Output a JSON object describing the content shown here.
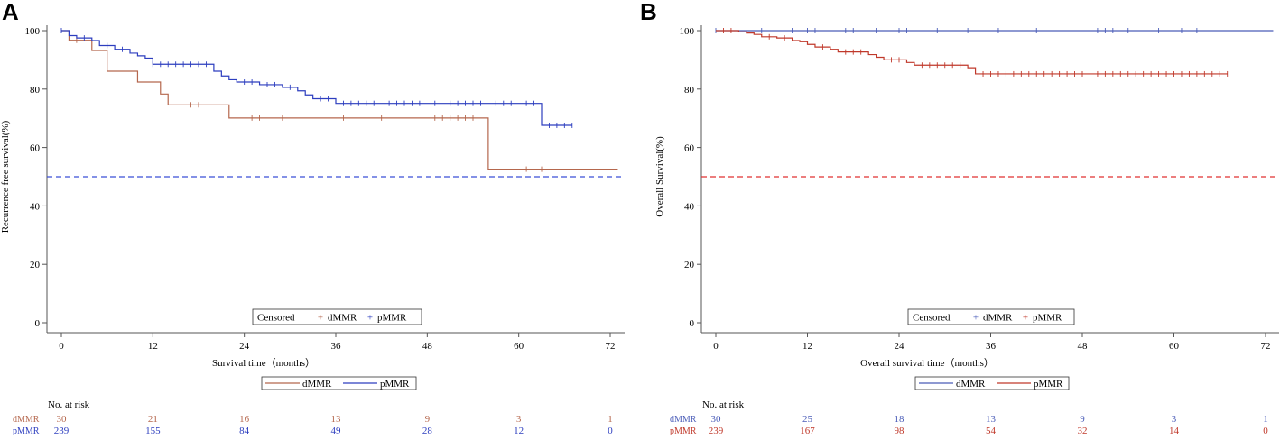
{
  "colors": {
    "dmmr": "#B5674D",
    "pmmr": "#2D3EBF",
    "panelB_dmmr": "#4A5CB8",
    "panelB_pmmr": "#C0392B",
    "ref_a": "#3B4FD8",
    "ref_b": "#E03030",
    "axis": "#555555"
  },
  "chart_data": [
    {
      "panel": "A",
      "type": "line",
      "step": true,
      "xlabel": "Survival time（months）",
      "ylabel": "Recurrence free survival(%)",
      "xlim": [
        -3,
        73
      ],
      "ylim": [
        -2,
        102
      ],
      "xticks": [
        "0",
        "12",
        "24",
        "36",
        "48",
        "60",
        "72"
      ],
      "yticks": [
        "0",
        "20",
        "40",
        "60",
        "80",
        "100"
      ],
      "reference_line": 50,
      "censor_legend": {
        "title": "Censored",
        "items": [
          "dMMR",
          "pMMR"
        ]
      },
      "line_legend": [
        "dMMR",
        "pMMR"
      ],
      "series": [
        {
          "name": "dMMR",
          "steps": [
            [
              0,
              100
            ],
            [
              1,
              96.7
            ],
            [
              4,
              93.2
            ],
            [
              6,
              86.1
            ],
            [
              10,
              82.4
            ],
            [
              13,
              78.3
            ],
            [
              14,
              74.6
            ],
            [
              22,
              70.1
            ],
            [
              56,
              52.6
            ],
            [
              73,
              52.6
            ]
          ],
          "censored": [
            [
              2,
              96.7
            ],
            [
              17,
              74.6
            ],
            [
              18,
              74.6
            ],
            [
              25,
              70.1
            ],
            [
              26,
              70.1
            ],
            [
              29,
              70.1
            ],
            [
              37,
              70.1
            ],
            [
              42,
              70.1
            ],
            [
              49,
              70.1
            ],
            [
              50,
              70.1
            ],
            [
              51,
              70.1
            ],
            [
              52,
              70.1
            ],
            [
              53,
              70.1
            ],
            [
              54,
              70.1
            ],
            [
              61,
              52.6
            ],
            [
              63,
              52.6
            ]
          ]
        },
        {
          "name": "pMMR",
          "steps": [
            [
              0,
              100
            ],
            [
              1,
              98.3
            ],
            [
              2,
              97.5
            ],
            [
              4,
              96.6
            ],
            [
              5,
              94.9
            ],
            [
              7,
              93.6
            ],
            [
              9,
              92.3
            ],
            [
              10,
              91.4
            ],
            [
              11,
              90.6
            ],
            [
              12,
              88.5
            ],
            [
              20,
              86.1
            ],
            [
              21,
              84.5
            ],
            [
              22,
              83.2
            ],
            [
              23,
              82.4
            ],
            [
              26,
              81.5
            ],
            [
              29,
              80.6
            ],
            [
              31,
              79.4
            ],
            [
              32,
              78.0
            ],
            [
              33,
              76.7
            ],
            [
              36,
              75.1
            ],
            [
              63,
              67.6
            ],
            [
              67,
              67.6
            ]
          ],
          "censored": [
            [
              0,
              100
            ],
            [
              3,
              97.5
            ],
            [
              6,
              94.9
            ],
            [
              8,
              93.6
            ],
            [
              12,
              88.5
            ],
            [
              13,
              88.5
            ],
            [
              14,
              88.5
            ],
            [
              15,
              88.5
            ],
            [
              16,
              88.5
            ],
            [
              17,
              88.5
            ],
            [
              18,
              88.5
            ],
            [
              19,
              88.5
            ],
            [
              24,
              82.4
            ],
            [
              25,
              82.4
            ],
            [
              27,
              81.5
            ],
            [
              28,
              81.5
            ],
            [
              30,
              80.6
            ],
            [
              34,
              76.7
            ],
            [
              35,
              76.7
            ],
            [
              37,
              75.1
            ],
            [
              38,
              75.1
            ],
            [
              39,
              75.1
            ],
            [
              40,
              75.1
            ],
            [
              41,
              75.1
            ],
            [
              43,
              75.1
            ],
            [
              44,
              75.1
            ],
            [
              45,
              75.1
            ],
            [
              46,
              75.1
            ],
            [
              47,
              75.1
            ],
            [
              49,
              75.1
            ],
            [
              51,
              75.1
            ],
            [
              52,
              75.1
            ],
            [
              53,
              75.1
            ],
            [
              54,
              75.1
            ],
            [
              55,
              75.1
            ],
            [
              57,
              75.1
            ],
            [
              58,
              75.1
            ],
            [
              59,
              75.1
            ],
            [
              61,
              75.1
            ],
            [
              62,
              75.1
            ],
            [
              64,
              67.6
            ],
            [
              65,
              67.6
            ],
            [
              66,
              67.6
            ],
            [
              67,
              67.6
            ]
          ]
        }
      ],
      "risk_table": {
        "title": "No. at risk",
        "rows": [
          {
            "label": "dMMR",
            "values": [
              "30",
              "21",
              "16",
              "13",
              "9",
              "3",
              "1"
            ]
          },
          {
            "label": "pMMR",
            "values": [
              "239",
              "155",
              "84",
              "49",
              "28",
              "12",
              "0"
            ]
          }
        ]
      }
    },
    {
      "panel": "B",
      "type": "line",
      "step": true,
      "xlabel": "Overall survival time（months）",
      "ylabel": "Overall Survival(%)",
      "xlim": [
        -3,
        73
      ],
      "ylim": [
        -2,
        102
      ],
      "xticks": [
        "0",
        "12",
        "24",
        "36",
        "48",
        "60",
        "72"
      ],
      "yticks": [
        "0",
        "20",
        "40",
        "60",
        "80",
        "100"
      ],
      "reference_line": 50,
      "censor_legend": {
        "title": "Censored",
        "items": [
          "dMMR",
          "pMMR"
        ]
      },
      "line_legend": [
        "dMMR",
        "pMMR"
      ],
      "series": [
        {
          "name": "dMMR",
          "steps": [
            [
              0,
              100
            ],
            [
              73,
              100
            ]
          ],
          "censored": [
            [
              0,
              100
            ],
            [
              6,
              100
            ],
            [
              10,
              100
            ],
            [
              12,
              100
            ],
            [
              13,
              100
            ],
            [
              17,
              100
            ],
            [
              18,
              100
            ],
            [
              21,
              100
            ],
            [
              24,
              100
            ],
            [
              25,
              100
            ],
            [
              29,
              100
            ],
            [
              33,
              100
            ],
            [
              37,
              100
            ],
            [
              42,
              100
            ],
            [
              49,
              100
            ],
            [
              50,
              100
            ],
            [
              51,
              100
            ],
            [
              52,
              100
            ],
            [
              54,
              100
            ],
            [
              58,
              100
            ],
            [
              61,
              100
            ],
            [
              63,
              100
            ]
          ]
        },
        {
          "name": "pMMR",
          "steps": [
            [
              0,
              100
            ],
            [
              3,
              99.6
            ],
            [
              4,
              99.2
            ],
            [
              5,
              98.7
            ],
            [
              6,
              97.9
            ],
            [
              8,
              97.5
            ],
            [
              10,
              96.6
            ],
            [
              11,
              96.2
            ],
            [
              12,
              95.3
            ],
            [
              13,
              94.4
            ],
            [
              15,
              93.6
            ],
            [
              16,
              92.7
            ],
            [
              20,
              91.8
            ],
            [
              21,
              90.9
            ],
            [
              22,
              90.0
            ],
            [
              25,
              89.1
            ],
            [
              26,
              88.2
            ],
            [
              33,
              87.3
            ],
            [
              34,
              85.2
            ],
            [
              67,
              85.2
            ]
          ],
          "censored": [
            [
              1,
              100
            ],
            [
              2,
              100
            ],
            [
              7,
              97.9
            ],
            [
              9,
              97.5
            ],
            [
              14,
              94.4
            ],
            [
              17,
              92.7
            ],
            [
              18,
              92.7
            ],
            [
              19,
              92.7
            ],
            [
              23,
              90.0
            ],
            [
              24,
              90.0
            ],
            [
              27,
              88.2
            ],
            [
              28,
              88.2
            ],
            [
              29,
              88.2
            ],
            [
              30,
              88.2
            ],
            [
              31,
              88.2
            ],
            [
              32,
              88.2
            ],
            [
              35,
              85.2
            ],
            [
              36,
              85.2
            ],
            [
              37,
              85.2
            ],
            [
              38,
              85.2
            ],
            [
              39,
              85.2
            ],
            [
              40,
              85.2
            ],
            [
              41,
              85.2
            ],
            [
              42,
              85.2
            ],
            [
              43,
              85.2
            ],
            [
              44,
              85.2
            ],
            [
              45,
              85.2
            ],
            [
              46,
              85.2
            ],
            [
              47,
              85.2
            ],
            [
              48,
              85.2
            ],
            [
              49,
              85.2
            ],
            [
              50,
              85.2
            ],
            [
              51,
              85.2
            ],
            [
              52,
              85.2
            ],
            [
              53,
              85.2
            ],
            [
              54,
              85.2
            ],
            [
              55,
              85.2
            ],
            [
              56,
              85.2
            ],
            [
              57,
              85.2
            ],
            [
              58,
              85.2
            ],
            [
              59,
              85.2
            ],
            [
              60,
              85.2
            ],
            [
              61,
              85.2
            ],
            [
              62,
              85.2
            ],
            [
              63,
              85.2
            ],
            [
              64,
              85.2
            ],
            [
              65,
              85.2
            ],
            [
              66,
              85.2
            ],
            [
              67,
              85.2
            ]
          ]
        }
      ],
      "risk_table": {
        "title": "No. at risk",
        "rows": [
          {
            "label": "dMMR",
            "values": [
              "30",
              "25",
              "18",
              "13",
              "9",
              "3",
              "1"
            ]
          },
          {
            "label": "pMMR",
            "values": [
              "239",
              "167",
              "98",
              "54",
              "32",
              "14",
              "0"
            ]
          }
        ]
      }
    }
  ]
}
